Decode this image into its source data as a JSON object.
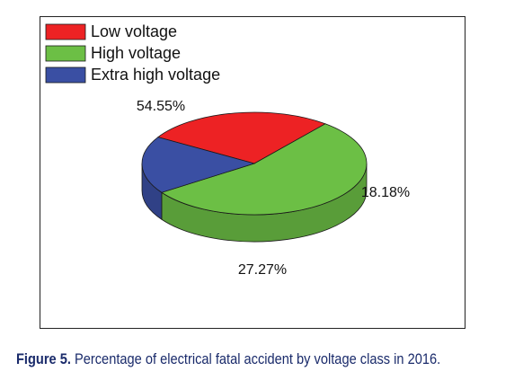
{
  "chart_data": {
    "type": "pie",
    "categories": [
      "Low voltage",
      "High voltage",
      "Extra high voltage"
    ],
    "values": [
      27.27,
      54.55,
      18.18
    ],
    "labels": [
      "27.27%",
      "54.55%",
      "18.18%"
    ],
    "colors": [
      "#ed2224",
      "#6cbf45",
      "#3a4fa3"
    ],
    "three_d": true,
    "legend_position": "top-left"
  },
  "caption": {
    "label": "Figure 5.",
    "text": " Percentage of electrical fatal accident by voltage class in 2016."
  }
}
